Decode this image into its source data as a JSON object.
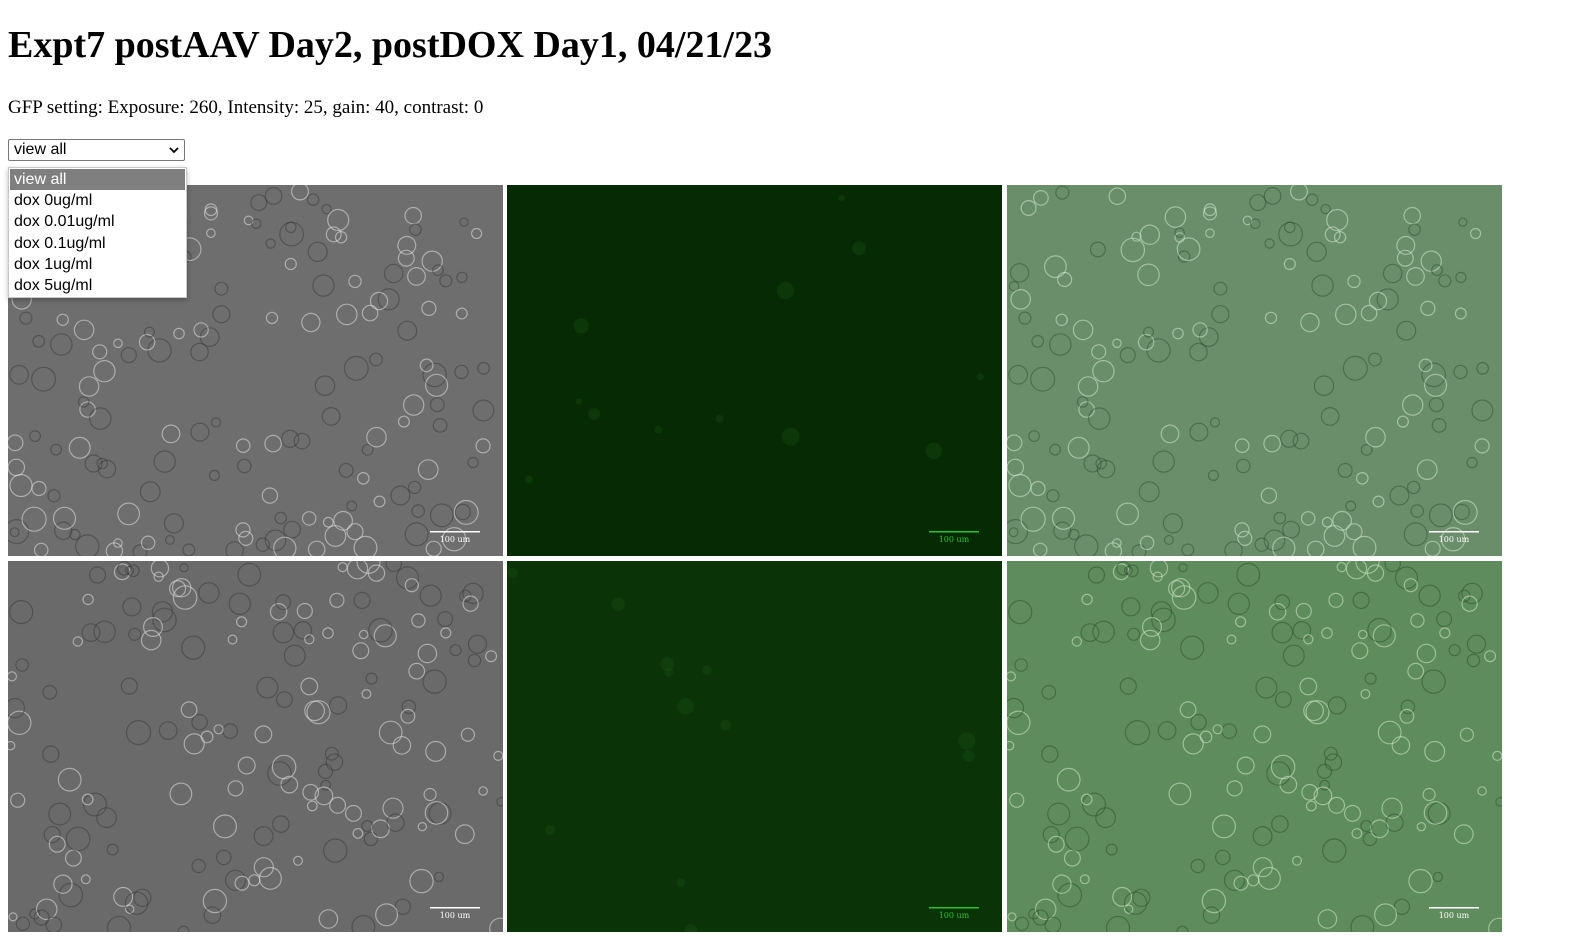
{
  "page": {
    "title": "Expt7 postAAV Day2, postDOX Day1, 04/21/23",
    "settings_text": "GFP setting: Exposure: 260, Intensity: 25, gain: 40, contrast: 0"
  },
  "filter": {
    "selected_label": "view all",
    "options": [
      "view all",
      "dox 0ug/ml",
      "dox 0.01ug/ml",
      "dox 0.1ug/ml",
      "dox 1ug/ml",
      "dox 5ug/ml"
    ]
  },
  "images": {
    "scale_bar_label": "100 um",
    "rows": [
      {
        "tiles": [
          {
            "channel": "brightfield",
            "bg": "#6e6e6e"
          },
          {
            "channel": "gfp",
            "bg": "#062b04"
          },
          {
            "channel": "merge",
            "bg": "#6b8e6a"
          }
        ]
      },
      {
        "tiles": [
          {
            "channel": "brightfield",
            "bg": "#6a6a6a"
          },
          {
            "channel": "gfp",
            "bg": "#0a3308"
          },
          {
            "channel": "merge",
            "bg": "#5e8c5c"
          }
        ]
      }
    ]
  },
  "colors": {
    "scale_bar_brightfield": "#ffffff",
    "scale_bar_gfp": "#2fbf2a"
  }
}
